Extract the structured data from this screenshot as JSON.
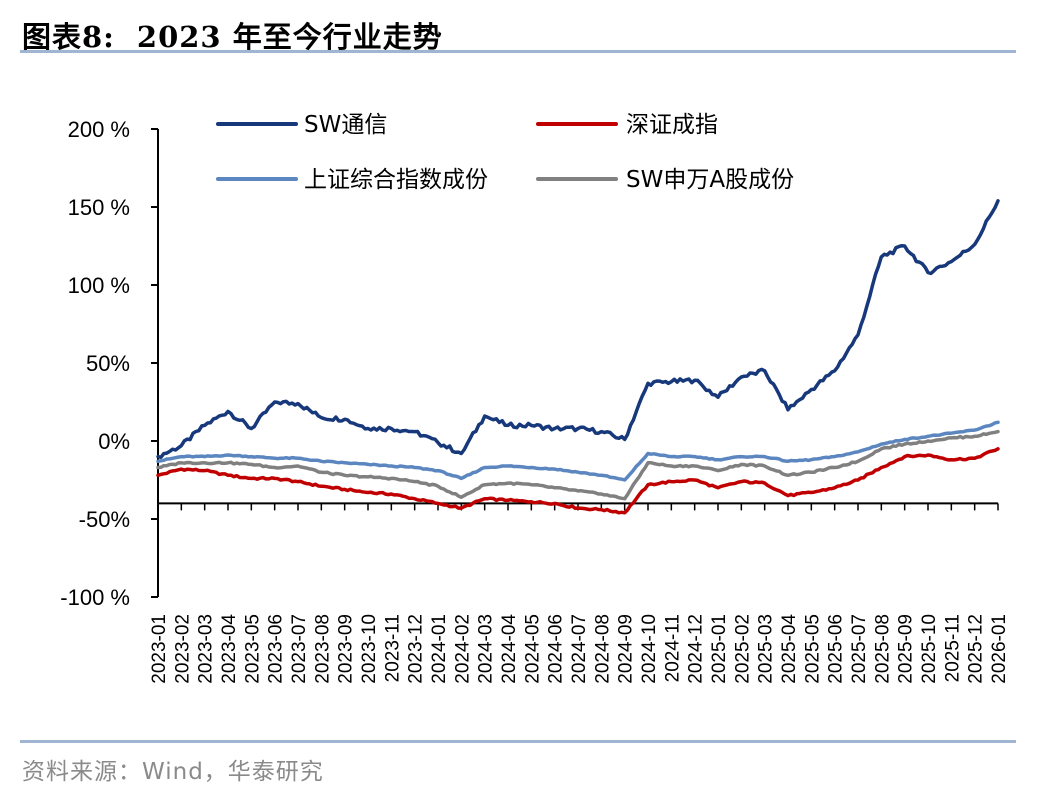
{
  "figure": {
    "title_prefix": "图表8:",
    "title_main": "2023 年至今行业走势",
    "source": "资料来源：Wind，华泰研究"
  },
  "chart_data": {
    "type": "line",
    "ylim": [
      -100,
      200
    ],
    "yticks": [
      200,
      150,
      100,
      50,
      0,
      -50,
      -100
    ],
    "ytick_labels": [
      "200 %",
      "150 %",
      "100 %",
      "50%",
      "0%",
      "-50%",
      "-100 %"
    ],
    "grid": false,
    "legend_position": "top",
    "x": [
      "2023-01",
      "2023-02",
      "2023-03",
      "2023-04",
      "2023-05",
      "2023-06",
      "2023-07",
      "2023-08",
      "2023-09",
      "2023-10",
      "2023-11",
      "2023-12",
      "2024-01",
      "2024-02",
      "2024-03",
      "2024-04",
      "2024-05",
      "2024-06",
      "2024-07",
      "2024-08",
      "2024-09",
      "2024-10",
      "2024-11",
      "2024-12",
      "2025-01",
      "2025-02",
      "2025-03",
      "2025-04",
      "2025-05",
      "2025-06",
      "2025-07",
      "2025-08",
      "2025-09",
      "2025-10",
      "2025-11",
      "2025-12",
      "2026-01"
    ],
    "series": [
      {
        "name": "SW通信",
        "color": "#17387a",
        "values": [
          -10,
          -3,
          10,
          19,
          8,
          25,
          24,
          15,
          14,
          8,
          8,
          6,
          -1,
          -8,
          16,
          10,
          10,
          8,
          8,
          6,
          1,
          37,
          38,
          39,
          28,
          41,
          45,
          20,
          33,
          45,
          68,
          118,
          125,
          108,
          115,
          126,
          154
        ]
      },
      {
        "name": "深证成指",
        "color": "#c00000",
        "values": [
          -22,
          -18,
          -19,
          -22,
          -24,
          -24,
          -26,
          -29,
          -31,
          -33,
          -34,
          -37,
          -40,
          -43,
          -37,
          -38,
          -39,
          -40,
          -43,
          -44,
          -46,
          -28,
          -26,
          -25,
          -30,
          -26,
          -27,
          -35,
          -33,
          -30,
          -25,
          -17,
          -10,
          -9,
          -12,
          -11,
          -5
        ]
      },
      {
        "name": "上证综合指数成份",
        "color": "#5b86bf",
        "values": [
          -13,
          -10,
          -10,
          -9,
          -10,
          -11,
          -11,
          -13,
          -14,
          -15,
          -16,
          -17,
          -19,
          -24,
          -17,
          -16,
          -17,
          -18,
          -20,
          -22,
          -25,
          -8,
          -10,
          -10,
          -12,
          -10,
          -10,
          -13,
          -12,
          -10,
          -7,
          -2,
          1,
          3,
          5,
          7,
          12
        ]
      },
      {
        "name": "SW申万A股成份",
        "color": "#808080",
        "values": [
          -17,
          -14,
          -14,
          -14,
          -15,
          -17,
          -16,
          -20,
          -22,
          -23,
          -24,
          -26,
          -29,
          -36,
          -28,
          -27,
          -28,
          -30,
          -32,
          -34,
          -37,
          -14,
          -16,
          -16,
          -19,
          -15,
          -16,
          -22,
          -20,
          -17,
          -13,
          -5,
          -2,
          0,
          2,
          3,
          6
        ]
      }
    ]
  }
}
